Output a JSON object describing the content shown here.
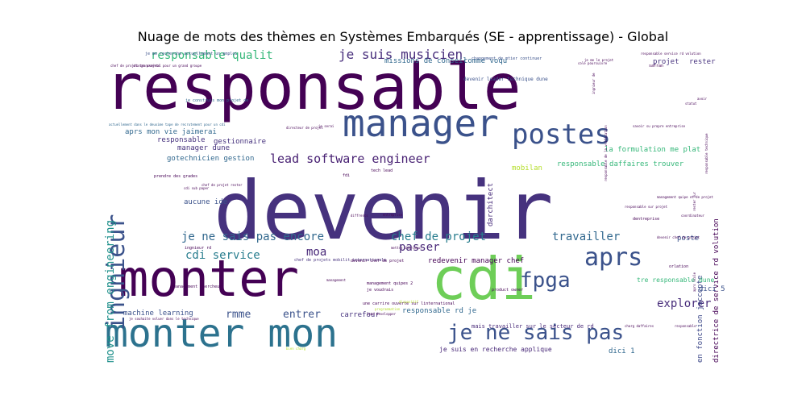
{
  "chart_data": {
    "type": "wordcloud",
    "title": "Nuage de mots des thèmes en Systèmes Embarqués (SE - apprentissage) - Global",
    "colormap": "viridis",
    "background": "#ffffff",
    "words": [
      {
        "text": "devenir",
        "size": 100,
        "color": "#46327e",
        "rotated": false
      },
      {
        "text": "responsable",
        "size": 78,
        "color": "#440154",
        "rotated": false
      },
      {
        "text": "monter",
        "size": 62,
        "color": "#440154",
        "rotated": false
      },
      {
        "text": "cdi",
        "size": 72,
        "color": "#6ece58",
        "rotated": false
      },
      {
        "text": "monter mon",
        "size": 48,
        "color": "#2c728e",
        "rotated": false
      },
      {
        "text": "manager",
        "size": 46,
        "color": "#3b528b",
        "rotated": false
      },
      {
        "text": "postes",
        "size": 34,
        "color": "#3b528b",
        "rotated": false
      },
      {
        "text": "ingnieur",
        "size": 30,
        "color": "#3b528b",
        "rotated": true
      },
      {
        "text": "aprs",
        "size": 30,
        "color": "#3b528b",
        "rotated": false
      },
      {
        "text": "je ne sais pas",
        "size": 26,
        "color": "#3b528b",
        "rotated": false
      },
      {
        "text": "fpga",
        "size": 26,
        "color": "#3b528b",
        "rotated": false
      },
      {
        "text": "je suis musicien",
        "size": 16,
        "color": "#472d7b",
        "rotated": false
      },
      {
        "text": "responsable qualit",
        "size": 14,
        "color": "#35b779",
        "rotated": false
      },
      {
        "text": "lead software engineer",
        "size": 15,
        "color": "#482173",
        "rotated": false
      },
      {
        "text": "je ne sais pas encore",
        "size": 14,
        "color": "#31688e",
        "rotated": false
      },
      {
        "text": "chef de projet",
        "size": 14,
        "color": "#287d8e",
        "rotated": false
      },
      {
        "text": "travailler",
        "size": 14,
        "color": "#31688e",
        "rotated": false
      },
      {
        "text": "move from engineering",
        "size": 14,
        "color": "#21918c",
        "rotated": true
      },
      {
        "text": "cdi service",
        "size": 14,
        "color": "#287d8e",
        "rotated": false
      },
      {
        "text": "moa",
        "size": 14,
        "color": "#482878",
        "rotated": false
      },
      {
        "text": "passer",
        "size": 14,
        "color": "#482878",
        "rotated": false
      },
      {
        "text": "explorer",
        "size": 14,
        "color": "#472c7a",
        "rotated": false
      },
      {
        "text": "rmme",
        "size": 13,
        "color": "#3b528b",
        "rotated": false
      },
      {
        "text": "entrer",
        "size": 13,
        "color": "#3b528b",
        "rotated": false
      },
      {
        "text": "aprs mon vie jaimerai",
        "size": 9,
        "color": "#31688e",
        "rotated": false
      },
      {
        "text": "responsable",
        "size": 9,
        "color": "#46327e",
        "rotated": false
      },
      {
        "text": "gestionnaire",
        "size": 9,
        "color": "#46327e",
        "rotated": false
      },
      {
        "text": "manager dune",
        "size": 9,
        "color": "#46327e",
        "rotated": false
      },
      {
        "text": "gotechnicien gestion",
        "size": 9,
        "color": "#31688e",
        "rotated": false
      },
      {
        "text": "mobilan",
        "size": 9,
        "color": "#b5de2b",
        "rotated": false
      },
      {
        "text": "responsable daffaires trouver",
        "size": 9,
        "color": "#35b779",
        "rotated": false
      },
      {
        "text": "la formulation me plat",
        "size": 9,
        "color": "#35b779",
        "rotated": false
      },
      {
        "text": "directrice de service rd volution",
        "size": 9,
        "color": "#440154",
        "rotated": true
      },
      {
        "text": "en fonction jaccepte",
        "size": 9,
        "color": "#3e4989",
        "rotated": true
      },
      {
        "text": "redevenir manager chef",
        "size": 9,
        "color": "#440154",
        "rotated": false
      },
      {
        "text": "responsable rd je",
        "size": 9,
        "color": "#31688e",
        "rotated": false
      },
      {
        "text": "carrefour",
        "size": 9,
        "color": "#46327e",
        "rotated": false
      },
      {
        "text": "machine learning",
        "size": 9,
        "color": "#3b528b",
        "rotated": false
      },
      {
        "text": "aucune ide",
        "size": 9,
        "color": "#3b528b",
        "rotated": false
      },
      {
        "text": "darchitect",
        "size": 9,
        "color": "#472c7a",
        "rotated": true
      },
      {
        "text": "poste",
        "size": 9,
        "color": "#3b528b",
        "rotated": false
      },
      {
        "text": "projet",
        "size": 9,
        "color": "#46327e",
        "rotated": false
      },
      {
        "text": "rester",
        "size": 9,
        "color": "#46327e",
        "rotated": false
      },
      {
        "text": "missions de conseil",
        "size": 9,
        "color": "#31688e",
        "rotated": false
      },
      {
        "text": "comme voqu",
        "size": 9,
        "color": "#31688e",
        "rotated": false
      },
      {
        "text": "dici 5",
        "size": 9,
        "color": "#3b528b",
        "rotated": false
      },
      {
        "text": "dici 1",
        "size": 9,
        "color": "#31688e",
        "rotated": false
      },
      {
        "text": "je suis en recherche applique",
        "size": 8,
        "color": "#482878",
        "rotated": false
      },
      {
        "text": "mais travailler sur le secteur de rd",
        "size": 7,
        "color": "#482878",
        "rotated": false
      },
      {
        "text": "tre responsable dune",
        "size": 8,
        "color": "#35b779",
        "rotated": false
      },
      {
        "text": "devenir leader technique dune",
        "size": 6,
        "color": "#3b528b",
        "rotated": false
      },
      {
        "text": "changement de mtier continuer",
        "size": 5,
        "color": "#3b528b",
        "rotated": false
      },
      {
        "text": "je me recherche actuellement un emploi",
        "size": 5,
        "color": "#3b528b",
        "rotated": false
      },
      {
        "text": "je construis mon projet de",
        "size": 5,
        "color": "#31688e",
        "rotated": false
      },
      {
        "text": "actuellement dans le deuxime tape de recrutement pour un cdi",
        "size": 4,
        "color": "#31688e",
        "rotated": false
      },
      {
        "text": "product owner",
        "size": 5,
        "color": "#440154",
        "rotated": false
      },
      {
        "text": "je voudrais",
        "size": 5,
        "color": "#440154",
        "rotated": false
      },
      {
        "text": "management quipes 2",
        "size": 5,
        "color": "#440154",
        "rotated": false
      },
      {
        "text": "une carrire ouverte sur linternational",
        "size": 5,
        "color": "#440154",
        "rotated": false
      },
      {
        "text": "chef de projets mobilit internationale",
        "size": 5,
        "color": "#46327e",
        "rotated": false
      },
      {
        "text": "devenir chef de projet",
        "size": 5,
        "color": "#440154",
        "rotated": false
      },
      {
        "text": "ingnieur rd",
        "size": 5,
        "color": "#440154",
        "rotated": false
      },
      {
        "text": "management chercheur",
        "size": 5,
        "color": "#440154",
        "rotated": false
      },
      {
        "text": "prendre des grades",
        "size": 5,
        "color": "#440154",
        "rotated": false
      },
      {
        "text": "chef de projet rester",
        "size": 4,
        "color": "#440154",
        "rotated": false
      },
      {
        "text": "dentreprise",
        "size": 5,
        "color": "#440154",
        "rotated": false
      },
      {
        "text": "orlation",
        "size": 5,
        "color": "#440154",
        "rotated": false
      },
      {
        "text": "tech lead",
        "size": 5,
        "color": "#440154",
        "rotated": false
      },
      {
        "text": "fdi",
        "size": 5,
        "color": "#440154",
        "rotated": false
      },
      {
        "text": "safran",
        "size": 5,
        "color": "#440154",
        "rotated": false
      },
      {
        "text": "savoir su propre entreprise",
        "size": 4,
        "color": "#440154",
        "rotated": false
      },
      {
        "text": "directeur de projet",
        "size": 4,
        "color": "#440154",
        "rotated": false
      },
      {
        "text": "je me le projet",
        "size": 4,
        "color": "#440154",
        "rotated": false
      },
      {
        "text": "mettre chercheur",
        "size": 4,
        "color": "#440154",
        "rotated": false
      },
      {
        "text": "responsable service rd volution",
        "size": 4,
        "color": "#440154",
        "rotated": false
      },
      {
        "text": "management quipe et de projet",
        "size": 4,
        "color": "#440154",
        "rotated": false
      },
      {
        "text": "responsable sur projet",
        "size": 4,
        "color": "#440154",
        "rotated": false
      },
      {
        "text": "cdi sub paper",
        "size": 4,
        "color": "#440154",
        "rotated": false
      },
      {
        "text": "charg daffaires",
        "size": 4,
        "color": "#440154",
        "rotated": false
      },
      {
        "text": "responsable",
        "size": 4,
        "color": "#440154",
        "rotated": false
      },
      {
        "text": "devenir chef de projet",
        "size": 4,
        "color": "#440154",
        "rotated": false
      },
      {
        "text": "programmation",
        "size": 4,
        "color": "#b5de2b",
        "rotated": false
      },
      {
        "text": "je souhaite voluer dans le technique",
        "size": 4,
        "color": "#440154",
        "rotated": false
      },
      {
        "text": "dispositif",
        "size": 4,
        "color": "#b5de2b",
        "rotated": false
      },
      {
        "text": "bien charg",
        "size": 4,
        "color": "#b5de2b",
        "rotated": false
      },
      {
        "text": "lead developper",
        "size": 4,
        "color": "#440154",
        "rotated": false
      },
      {
        "text": "chef de projet transversal pour un grand groupe",
        "size": 4,
        "color": "#440154",
        "rotated": false
      },
      {
        "text": "charge projets",
        "size": 4,
        "color": "#440154",
        "rotated": false
      },
      {
        "text": "management",
        "size": 4,
        "color": "#440154",
        "rotated": false
      },
      {
        "text": "entreprise",
        "size": 4,
        "color": "#440154",
        "rotated": false
      },
      {
        "text": "diffrents",
        "size": 4,
        "color": "#440154",
        "rotated": false
      },
      {
        "text": "responsable de la vrification",
        "size": 4,
        "color": "#440154",
        "rotated": true
      },
      {
        "text": "ingnieur de",
        "size": 4,
        "color": "#440154",
        "rotated": true
      },
      {
        "text": "cole poursuivre",
        "size": 4,
        "color": "#440154",
        "rotated": false
      },
      {
        "text": "avoir",
        "size": 4,
        "color": "#440154",
        "rotated": false
      },
      {
        "text": "statut",
        "size": 4,
        "color": "#440154",
        "rotated": false
      },
      {
        "text": "je serai",
        "size": 4,
        "color": "#440154",
        "rotated": false
      },
      {
        "text": "coordinateur",
        "size": 4,
        "color": "#440154",
        "rotated": false
      },
      {
        "text": "rester sur",
        "size": 4,
        "color": "#440154",
        "rotated": true
      },
      {
        "text": "responsable technique",
        "size": 4,
        "color": "#440154",
        "rotated": true
      },
      {
        "text": "aprs lcole",
        "size": 4,
        "color": "#440154",
        "rotated": true
      }
    ]
  }
}
